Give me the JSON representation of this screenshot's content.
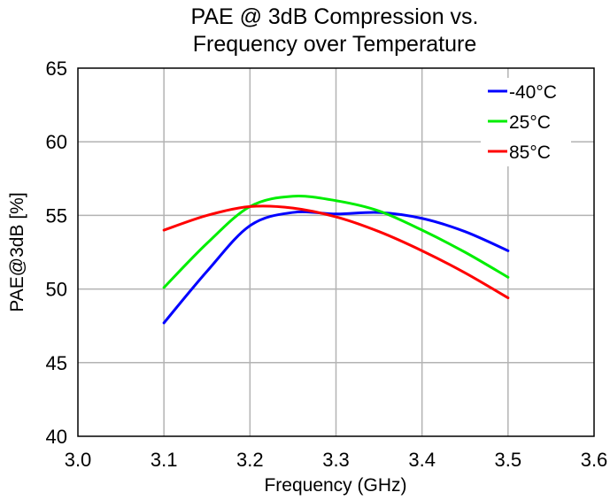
{
  "chart_data": {
    "type": "line",
    "title_lines": [
      "PAE @ 3dB Compression vs.",
      "Frequency over Temperature"
    ],
    "xlabel": "Frequency (GHz)",
    "ylabel": "PAE@3dB [%]",
    "xlim": [
      3.0,
      3.6
    ],
    "ylim": [
      40,
      65
    ],
    "x_ticks": [
      "3.0",
      "3.1",
      "3.2",
      "3.3",
      "3.4",
      "3.5",
      "3.6"
    ],
    "y_ticks": [
      "40",
      "45",
      "50",
      "55",
      "60",
      "65"
    ],
    "grid": true,
    "legend_position": "top-right",
    "series": [
      {
        "name": "-40°C",
        "color": "#0000ff",
        "x": [
          3.1,
          3.15,
          3.2,
          3.25,
          3.3,
          3.35,
          3.4,
          3.45,
          3.5
        ],
        "y": [
          47.7,
          51.2,
          54.3,
          55.2,
          55.1,
          55.2,
          54.8,
          53.9,
          52.6
        ]
      },
      {
        "name": "25°C",
        "color": "#00ee00",
        "x": [
          3.1,
          3.15,
          3.2,
          3.25,
          3.3,
          3.35,
          3.4,
          3.45,
          3.5
        ],
        "y": [
          50.1,
          53.1,
          55.6,
          56.3,
          56.0,
          55.3,
          54.0,
          52.5,
          50.8
        ]
      },
      {
        "name": "85°C",
        "color": "#ff0000",
        "x": [
          3.1,
          3.15,
          3.2,
          3.25,
          3.3,
          3.35,
          3.4,
          3.45,
          3.5
        ],
        "y": [
          54.0,
          55.0,
          55.6,
          55.5,
          54.9,
          53.9,
          52.6,
          51.1,
          49.4
        ]
      }
    ]
  }
}
